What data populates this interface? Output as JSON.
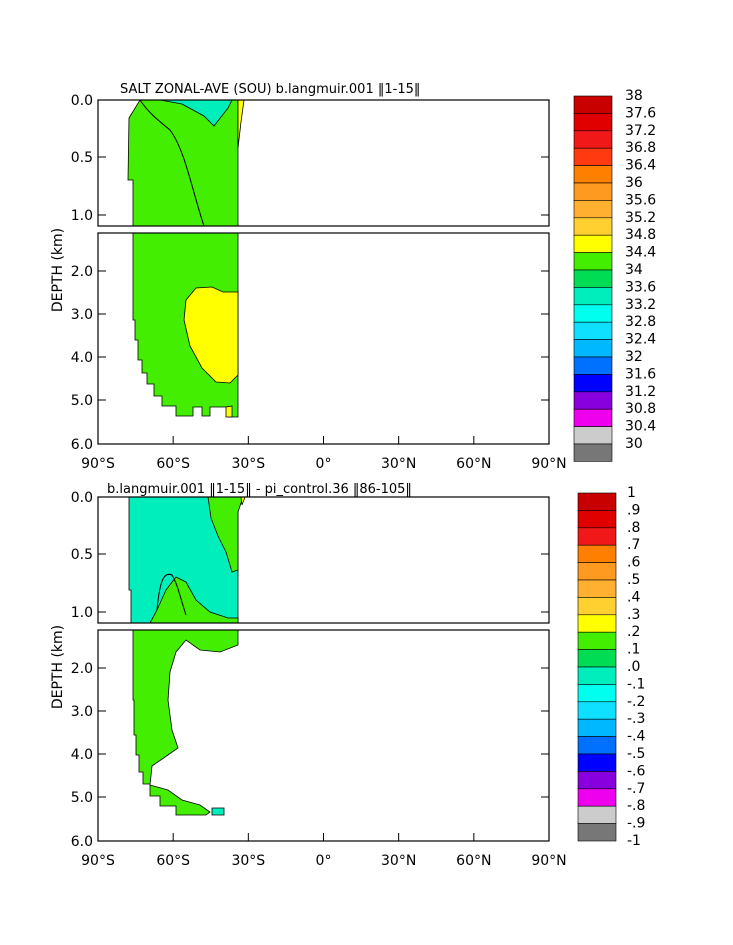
{
  "figure": {
    "domain": "Southern Ocean salinity zonal average",
    "x_ticks": [
      "90°S",
      "60°S",
      "30°S",
      "0°",
      "30°N",
      "60°N",
      "90°N"
    ],
    "x_range": [
      -90,
      90
    ],
    "depth_ticks": [
      "0.0",
      "0.5",
      "1.0",
      "2.0",
      "3.0",
      "4.0",
      "5.0",
      "6.0"
    ],
    "depth_axis_label": "DEPTH (km)"
  },
  "chart_data": [
    {
      "type": "contour",
      "title": "SALT ZONAL-AVE (SOU) b.langmuir.001 ‖1-15‖",
      "xlabel": "",
      "ylabel": "DEPTH (km)",
      "xlim": [
        -90,
        90
      ],
      "upper_depth_range_km": [
        0.0,
        1.1
      ],
      "lower_depth_range_km": [
        1.1,
        6.0
      ],
      "data_extent_lat": [
        -78,
        -35
      ],
      "colorbar": {
        "labels": [
          "38",
          "37.6",
          "37.2",
          "36.8",
          "36.4",
          "36",
          "35.6",
          "35.2",
          "34.8",
          "34.4",
          "34",
          "33.6",
          "33.2",
          "32.8",
          "32.4",
          "32",
          "31.6",
          "31.2",
          "30.8",
          "30.4",
          "30"
        ],
        "colors": [
          "#c80000",
          "#e00000",
          "#f01818",
          "#ff3a10",
          "#ff8000",
          "#ff9a20",
          "#ffb030",
          "#ffd030",
          "#ffff00",
          "#44ee00",
          "#00dd55",
          "#00eebb",
          "#00ffee",
          "#10e0ff",
          "#00b8ff",
          "#0070ff",
          "#0000ff",
          "#8800dd",
          "#ee00ee",
          "#cccccc",
          "#777777"
        ]
      },
      "regions": [
        {
          "name": "fresh-surface-tongue",
          "value_range": [
            33.6,
            34.0
          ]
        },
        {
          "name": "main-water-mass",
          "value_range": [
            34.4,
            34.8
          ]
        },
        {
          "name": "high-salinity-core",
          "value_range": [
            34.8,
            35.2
          ]
        },
        {
          "name": "surface-salty-patch",
          "value_range": [
            34.8,
            35.2
          ]
        }
      ]
    },
    {
      "type": "contour",
      "title": "b.langmuir.001 ‖1-15‖ - pi_control.36 ‖86-105‖",
      "xlabel": "",
      "ylabel": "DEPTH (km)",
      "xlim": [
        -90,
        90
      ],
      "upper_depth_range_km": [
        0.0,
        1.1
      ],
      "lower_depth_range_km": [
        1.1,
        6.0
      ],
      "data_extent_lat": [
        -78,
        -35
      ],
      "colorbar": {
        "labels": [
          "1",
          ".9",
          ".8",
          ".7",
          ".6",
          ".5",
          ".4",
          ".3",
          ".2",
          ".1",
          ".0",
          "-.1",
          "-.2",
          "-.3",
          "-.4",
          "-.5",
          "-.6",
          "-.7",
          "-.8",
          "-.9",
          "-1"
        ],
        "colors": [
          "#c80000",
          "#e00000",
          "#f01818",
          "#ff8000",
          "#ff9a20",
          "#ffb030",
          "#ffd030",
          "#ffff00",
          "#44ee00",
          "#00dd55",
          "#00eebb",
          "#00ffee",
          "#10e0ff",
          "#00b8ff",
          "#0070ff",
          "#0000ff",
          "#8800dd",
          "#ee00ee",
          "#cccccc",
          "#777777"
        ]
      },
      "regions": [
        {
          "name": "positive-anomaly",
          "value_range": [
            0.0,
            0.1
          ]
        },
        {
          "name": "negative-anomaly",
          "value_range": [
            -0.1,
            0.0
          ]
        }
      ]
    }
  ]
}
